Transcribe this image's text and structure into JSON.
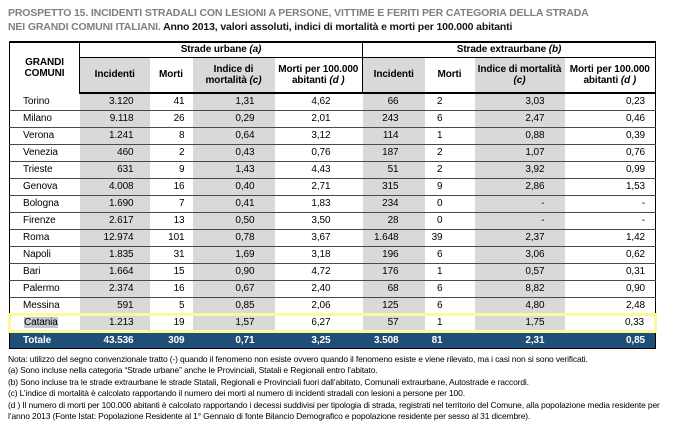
{
  "title": {
    "heading_gray_line1": "PROSPETTO 15. INCIDENTI STRADALI CON LESIONI A PERSONE, VITTIME E FERITI PER CATEGORIA DELLA STRADA",
    "heading_gray_line2": "NEI GRANDI COMUNI ITALIANI.",
    "subtitle_black": "Anno 2013, valori assoluti, indici di mortalità e morti per 100.000 abitanti"
  },
  "table": {
    "corner_header": "GRANDI COMUNI",
    "group_headers": [
      {
        "text": "Strade urbane",
        "note": "(a)"
      },
      {
        "text": "Strade extraurbane",
        "note": "(b)"
      }
    ],
    "column_headers": [
      {
        "text": "Incidenti",
        "note": "",
        "shade": true
      },
      {
        "text": "Morti",
        "note": "",
        "shade": false
      },
      {
        "text": "Indice di mortalità",
        "note": "(c)",
        "shade": true
      },
      {
        "text": "Morti per 100.000 abitanti",
        "note": "(d )",
        "shade": false
      },
      {
        "text": "Incidenti",
        "note": "",
        "shade": true
      },
      {
        "text": "Morti",
        "note": "",
        "shade": false
      },
      {
        "text": "Indice di mortalità",
        "note": "(c)",
        "shade": true
      },
      {
        "text": "Morti per 100.000 abitanti",
        "note": "(d )",
        "shade": false
      }
    ],
    "rows": [
      {
        "comune": "Torino",
        "values": [
          "3.120",
          "41",
          "1,31",
          "4,62",
          "66",
          "2",
          "3,03",
          "0,23"
        ],
        "highlighted": false,
        "label_selected": false
      },
      {
        "comune": "Milano",
        "values": [
          "9.118",
          "26",
          "0,29",
          "2,01",
          "243",
          "6",
          "2,47",
          "0,46"
        ],
        "highlighted": false,
        "label_selected": false
      },
      {
        "comune": "Verona",
        "values": [
          "1.241",
          "8",
          "0,64",
          "3,12",
          "114",
          "1",
          "0,88",
          "0,39"
        ],
        "highlighted": false,
        "label_selected": false
      },
      {
        "comune": "Venezia",
        "values": [
          "460",
          "2",
          "0,43",
          "0,76",
          "187",
          "2",
          "1,07",
          "0,76"
        ],
        "highlighted": false,
        "label_selected": false
      },
      {
        "comune": "Trieste",
        "values": [
          "631",
          "9",
          "1,43",
          "4,43",
          "51",
          "2",
          "3,92",
          "0,99"
        ],
        "highlighted": false,
        "label_selected": false
      },
      {
        "comune": "Genova",
        "values": [
          "4.008",
          "16",
          "0,40",
          "2,71",
          "315",
          "9",
          "2,86",
          "1,53"
        ],
        "highlighted": false,
        "label_selected": false
      },
      {
        "comune": "Bologna",
        "values": [
          "1.690",
          "7",
          "0,41",
          "1,83",
          "234",
          "0",
          "-",
          "-"
        ],
        "highlighted": false,
        "label_selected": false
      },
      {
        "comune": "Firenze",
        "values": [
          "2.617",
          "13",
          "0,50",
          "3,50",
          "28",
          "0",
          "-",
          "-"
        ],
        "highlighted": false,
        "label_selected": false
      },
      {
        "comune": "Roma",
        "values": [
          "12.974",
          "101",
          "0,78",
          "3,67",
          "1.648",
          "39",
          "2,37",
          "1,42"
        ],
        "highlighted": false,
        "label_selected": false
      },
      {
        "comune": "Napoli",
        "values": [
          "1.835",
          "31",
          "1,69",
          "3,18",
          "196",
          "6",
          "3,06",
          "0,62"
        ],
        "highlighted": false,
        "label_selected": false
      },
      {
        "comune": "Bari",
        "values": [
          "1.664",
          "15",
          "0,90",
          "4,72",
          "176",
          "1",
          "0,57",
          "0,31"
        ],
        "highlighted": false,
        "label_selected": false
      },
      {
        "comune": "Palermo",
        "values": [
          "2.374",
          "16",
          "0,67",
          "2,40",
          "68",
          "6",
          "8,82",
          "0,90"
        ],
        "highlighted": false,
        "label_selected": false
      },
      {
        "comune": "Messina",
        "values": [
          "591",
          "5",
          "0,85",
          "2,06",
          "125",
          "6",
          "4,80",
          "2,48"
        ],
        "highlighted": false,
        "label_selected": false
      },
      {
        "comune": "Catania",
        "values": [
          "1.213",
          "19",
          "1,57",
          "6,27",
          "57",
          "1",
          "1,75",
          "0,33"
        ],
        "highlighted": true,
        "label_selected": true
      }
    ],
    "total_row": {
      "label": "Totale",
      "values": [
        "43.536",
        "309",
        "0,71",
        "3,25",
        "3.508",
        "81",
        "2,31",
        "0,85"
      ]
    }
  },
  "footnotes": [
    "Nota: utilizzo del segno convenzionale tratto (-) quando il fenomeno non esiste ovvero quando il fenomeno esiste e viene rilevato, ma i casi non si sono verificati.",
    "(a) Sono incluse nella categoria “Strade urbane” anche le Provinciali, Statali e Regionali entro l’abitato.",
    "(b) Sono incluse tra le strade extraurbane le strade Statali, Regionali e Provinciali fuori dall’abitato, Comunali extraurbane, Autostrade e raccordi.",
    "(c) L’indice di mortalità è calcolato rapportando il numero dei morti al numero di incidenti stradali con lesioni a persone per 100.",
    "(d ) Il numero di morti per 100.000 abitanti è calcolato rapportando i decessi suddivisi per tipologia di strada, registrati nel territorio del Comune, alla popolazione media residente per l’anno 2013 (Fonte Istat: Popolazione Residente al 1° Gennaio di fonte Bilancio Demografico e popolazione residente per sesso al 31 dicembre)."
  ],
  "colors": {
    "title_gray": "#7f7f7f",
    "column_shade": "#d9d9d9",
    "total_row_bg": "#1f4e79",
    "total_row_text": "#ffffff",
    "highlight_yellow": "#fdfa9c",
    "selection_gray": "#c2c7cf"
  }
}
